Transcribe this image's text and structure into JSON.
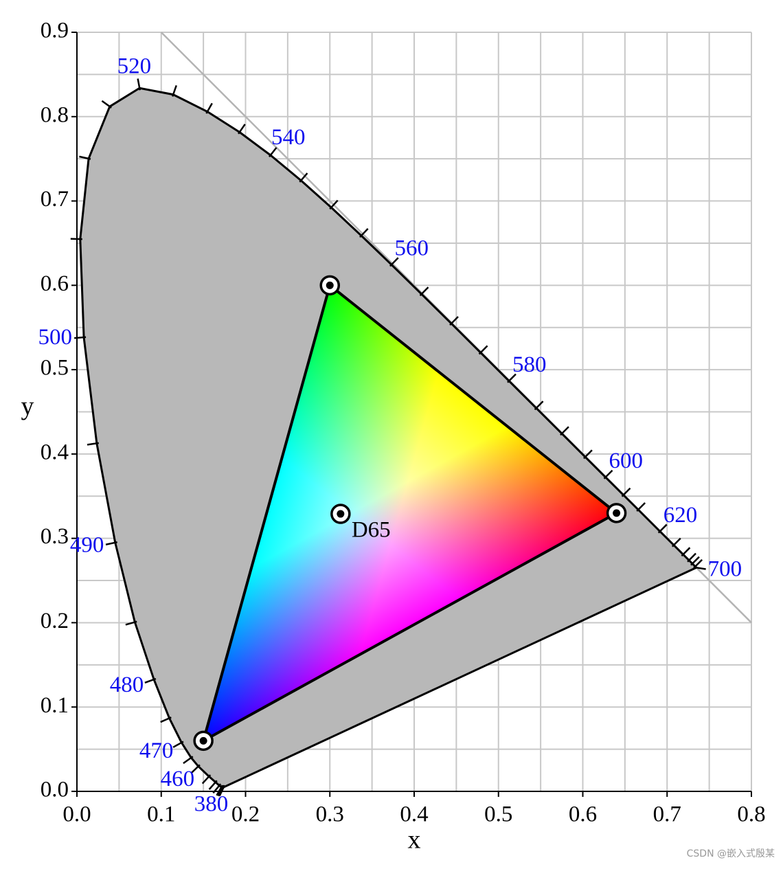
{
  "chart_data": {
    "type": "chromaticity",
    "xlabel": "x",
    "ylabel": "y",
    "xlim": [
      0,
      0.8
    ],
    "ylim": [
      0,
      0.9
    ],
    "xticks": [
      {
        "value": 0,
        "label": "0.0"
      },
      0.1,
      0.2,
      0.3,
      0.4,
      0.5,
      0.6,
      0.7,
      0.8
    ],
    "yticks": [
      {
        "value": 0,
        "label": "0.0"
      },
      0.1,
      0.2,
      0.3,
      0.4,
      0.5,
      0.6,
      0.7,
      0.8,
      0.9
    ],
    "grid": true,
    "grid_color": "#c8c8c8",
    "reference_line": {
      "x": [
        0.1,
        0.8
      ],
      "y": [
        0.9,
        0.2
      ],
      "color": "#b4b4b4"
    },
    "locus": {
      "color": "#b8b8b8",
      "label_color": "#1010ee",
      "x": [
        0.1741,
        0.1738,
        0.1733,
        0.1726,
        0.1714,
        0.1689,
        0.1644,
        0.1566,
        0.144,
        0.1355,
        0.1241,
        0.1096,
        0.0913,
        0.0687,
        0.0454,
        0.0235,
        0.0082,
        0.0039,
        0.0139,
        0.0389,
        0.0743,
        0.1142,
        0.1547,
        0.1929,
        0.2296,
        0.2658,
        0.3016,
        0.3373,
        0.3731,
        0.4087,
        0.4441,
        0.4788,
        0.5125,
        0.5448,
        0.5752,
        0.6029,
        0.627,
        0.6482,
        0.6658,
        0.6915,
        0.7079,
        0.719,
        0.726,
        0.73,
        0.7334,
        0.7347
      ],
      "y": [
        0.005,
        0.0049,
        0.0048,
        0.0048,
        0.0051,
        0.0069,
        0.0109,
        0.0177,
        0.0297,
        0.0399,
        0.0578,
        0.0868,
        0.1327,
        0.2007,
        0.295,
        0.4127,
        0.5384,
        0.6548,
        0.7502,
        0.812,
        0.8338,
        0.8262,
        0.8059,
        0.7816,
        0.7543,
        0.7243,
        0.6923,
        0.6589,
        0.6245,
        0.5896,
        0.5547,
        0.5202,
        0.4866,
        0.4544,
        0.4242,
        0.3965,
        0.3725,
        0.3514,
        0.334,
        0.3083,
        0.292,
        0.2809,
        0.274,
        0.27,
        0.2666,
        0.2653
      ],
      "wavelengths": [
        380,
        null,
        null,
        null,
        null,
        null,
        null,
        null,
        460,
        null,
        470,
        null,
        480,
        null,
        490,
        null,
        500,
        null,
        null,
        null,
        520,
        null,
        null,
        null,
        540,
        null,
        null,
        null,
        560,
        null,
        null,
        null,
        580,
        null,
        null,
        null,
        600,
        null,
        null,
        620,
        null,
        null,
        null,
        null,
        null,
        700
      ]
    },
    "gamut": {
      "x": [
        0.64,
        0.3,
        0.15
      ],
      "y": [
        0.33,
        0.6,
        0.06
      ],
      "colors": [
        "#ff0000",
        "#00ff00",
        "#0000ff"
      ]
    },
    "white_point": {
      "label": "D65",
      "x": 0.3127,
      "y": 0.329
    },
    "watermark": "CSDN @嵌入式殷某"
  }
}
